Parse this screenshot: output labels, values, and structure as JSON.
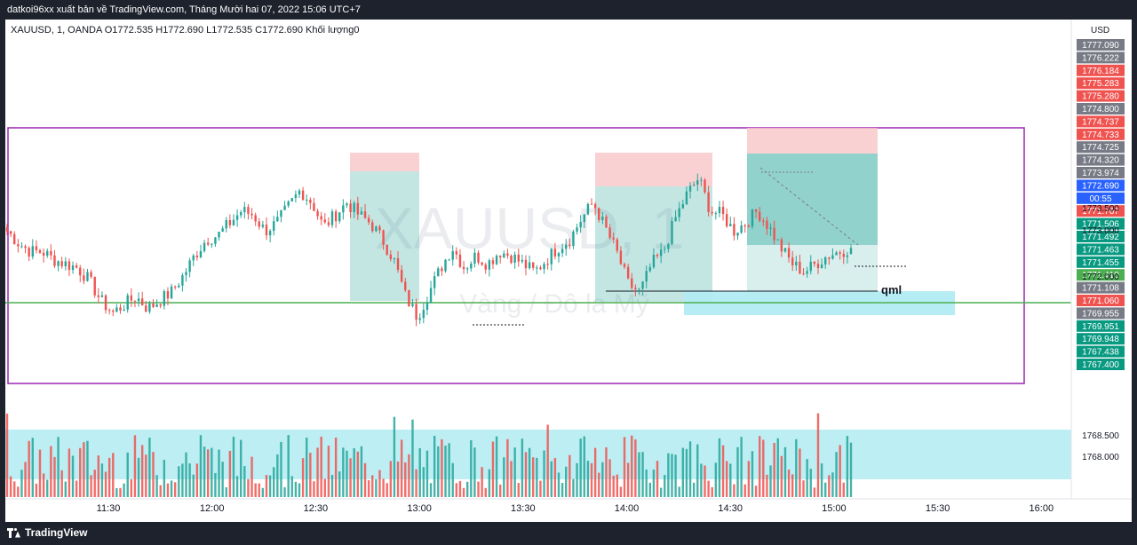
{
  "header": {
    "publisher_line": "datkoi96xx xuất bản về TradingView.com, Tháng Mười hai 07, 2022 15:06 UTC+7"
  },
  "legend": {
    "symbol_line": "XAUUSD, 1, OANDA  O1772.535  H1772.690  L1772.535  C1772.690  Khối lượng0"
  },
  "watermark": {
    "symbol": "XAUUSD, 1",
    "description": "Vàng / Đô la Mỹ"
  },
  "footer": {
    "brand": "TradingView"
  },
  "annotations": {
    "qml_label": "qml"
  },
  "colors": {
    "up": "#26a69a",
    "down": "#ef5350",
    "box": "#9c27b0",
    "level": "#4caf50",
    "zone": "#b2ebf2",
    "tp": "#26a69a",
    "sl": "#f7c5c8"
  },
  "chart_data": {
    "type": "candlestick",
    "symbol": "XAUUSD",
    "timeframe": "1",
    "exchange": "OANDA",
    "ohlc": {
      "open": 1772.535,
      "high": 1772.69,
      "low": 1772.535,
      "close": 1772.69
    },
    "volume": 0,
    "currency": "USD",
    "y_axis_ticks": [
      "1773.500",
      "1773.000",
      "1772.000",
      "1768.500",
      "1768.000"
    ],
    "x_axis_ticks": [
      "11:30",
      "12:00",
      "12:30",
      "13:00",
      "13:30",
      "14:00",
      "14:30",
      "15:00",
      "15:30",
      "16:00"
    ],
    "price_labels": [
      {
        "value": "1777.090",
        "color": "#787b86"
      },
      {
        "value": "1776.222",
        "color": "#787b86"
      },
      {
        "value": "1776.184",
        "color": "#ef5350"
      },
      {
        "value": "1775.283",
        "color": "#ef5350"
      },
      {
        "value": "1775.280",
        "color": "#ef5350"
      },
      {
        "value": "1774.800",
        "color": "#787b86"
      },
      {
        "value": "1774.737",
        "color": "#ef5350"
      },
      {
        "value": "1774.733",
        "color": "#ef5350"
      },
      {
        "value": "1774.725",
        "color": "#787b86"
      },
      {
        "value": "1774.320",
        "color": "#787b86"
      },
      {
        "value": "1773.974",
        "color": "#787b86"
      },
      {
        "value": "1772.690",
        "color": "#2962ff"
      },
      {
        "value": "00:55",
        "color": "#2962ff"
      },
      {
        "value": "1771.767",
        "color": "#ef5350"
      },
      {
        "value": "1771.506",
        "color": "#089981"
      },
      {
        "value": "1771.492",
        "color": "#089981"
      },
      {
        "value": "1771.463",
        "color": "#089981"
      },
      {
        "value": "1771.455",
        "color": "#089981"
      },
      {
        "value": "1771.410",
        "color": "#4caf50"
      },
      {
        "value": "1771.108",
        "color": "#787b86"
      },
      {
        "value": "1771.060",
        "color": "#ef5350"
      },
      {
        "value": "1769.955",
        "color": "#787b86"
      },
      {
        "value": "1769.951",
        "color": "#089981"
      },
      {
        "value": "1769.948",
        "color": "#089981"
      },
      {
        "value": "1767.438",
        "color": "#089981"
      },
      {
        "value": "1767.400",
        "color": "#089981"
      }
    ],
    "close_path": [
      1773.1,
      1772.8,
      1772.6,
      1772.6,
      1772.4,
      1772.3,
      1772.2,
      1771.9,
      1771.4,
      1771.1,
      1771.3,
      1771.5,
      1771.2,
      1771.4,
      1771.6,
      1772.0,
      1772.5,
      1772.9,
      1773.0,
      1773.3,
      1773.6,
      1773.5,
      1773.1,
      1773.3,
      1773.7,
      1774.1,
      1773.8,
      1773.2,
      1773.5,
      1773.8,
      1773.5,
      1773.3,
      1772.9,
      1772.4,
      1771.5,
      1771.0,
      1771.6,
      1772.2,
      1772.7,
      1772.2,
      1772.5,
      1772.3,
      1772.6,
      1772.5,
      1772.3,
      1772.1,
      1772.4,
      1772.7,
      1772.9,
      1773.4,
      1773.8,
      1773.2,
      1772.6,
      1771.8,
      1771.6,
      1772.3,
      1772.6,
      1773.4,
      1774.0,
      1774.4,
      1773.6,
      1773.5,
      1773.1,
      1773.3,
      1773.6,
      1773.2,
      1772.7,
      1772.3,
      1772.1,
      1772.3,
      1772.5,
      1772.6,
      1772.69
    ]
  }
}
